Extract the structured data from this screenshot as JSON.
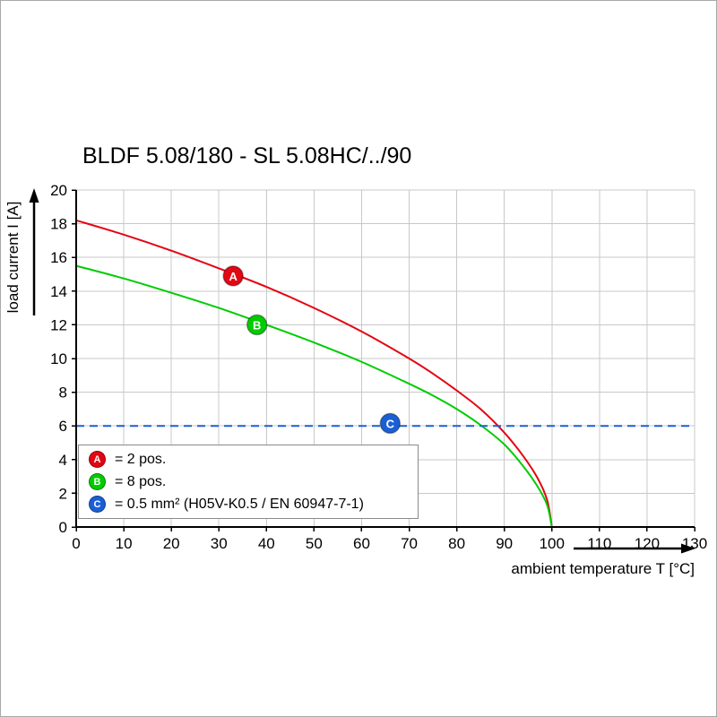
{
  "page": {
    "background": "#ffffff",
    "border_color": "#a8a8a8"
  },
  "chart_data": {
    "type": "line",
    "title": "BLDF 5.08/180 - SL 5.08HC/../90",
    "xlabel": "ambient temperature T [°C]",
    "ylabel": "load current I [A]",
    "xlim": [
      0,
      130
    ],
    "ylim": [
      0,
      20
    ],
    "x_ticks": [
      0,
      10,
      20,
      30,
      40,
      50,
      60,
      70,
      80,
      90,
      100,
      110,
      120,
      130
    ],
    "y_ticks": [
      0,
      2,
      4,
      6,
      8,
      10,
      12,
      14,
      16,
      18,
      20
    ],
    "grid": true,
    "grid_color": "#c8c8c8",
    "axis_color": "#000000",
    "legend_position": "lower-left",
    "series": [
      {
        "name": "A",
        "label": "2 pos.",
        "color": "#e30613",
        "style": "solid",
        "marker": {
          "x": 33,
          "y": 14.9
        },
        "points": [
          [
            0,
            18.2
          ],
          [
            10,
            17.35
          ],
          [
            20,
            16.4
          ],
          [
            30,
            15.35
          ],
          [
            40,
            14.25
          ],
          [
            50,
            13.0
          ],
          [
            60,
            11.6
          ],
          [
            70,
            10.0
          ],
          [
            75,
            9.1
          ],
          [
            80,
            8.1
          ],
          [
            85,
            7.0
          ],
          [
            90,
            5.6
          ],
          [
            94,
            4.2
          ],
          [
            97,
            2.9
          ],
          [
            99,
            1.6
          ],
          [
            100,
            0
          ]
        ]
      },
      {
        "name": "B",
        "label": "8 pos.",
        "color": "#00cc00",
        "style": "solid",
        "marker": {
          "x": 38,
          "y": 12.0
        },
        "points": [
          [
            0,
            15.5
          ],
          [
            10,
            14.75
          ],
          [
            20,
            13.9
          ],
          [
            30,
            13.0
          ],
          [
            40,
            12.0
          ],
          [
            50,
            10.95
          ],
          [
            60,
            9.8
          ],
          [
            70,
            8.5
          ],
          [
            75,
            7.8
          ],
          [
            80,
            7.0
          ],
          [
            85,
            6.05
          ],
          [
            90,
            4.9
          ],
          [
            94,
            3.6
          ],
          [
            97,
            2.4
          ],
          [
            99,
            1.3
          ],
          [
            100,
            0
          ]
        ]
      },
      {
        "name": "C",
        "label": "0.5 mm² (H05V-K0.5 / EN 60947-7-1)",
        "color": "#1a5fd6",
        "style": "dashed",
        "marker": {
          "x": 66,
          "y": 6.15
        },
        "points": [
          [
            0,
            6
          ],
          [
            130,
            6
          ]
        ]
      }
    ],
    "legend": [
      {
        "key": "A",
        "color": "#e30613",
        "text": "= 2 pos."
      },
      {
        "key": "B",
        "color": "#00cc00",
        "text": "= 8 pos."
      },
      {
        "key": "C",
        "color": "#1a5fd6",
        "text": "= 0.5 mm² (H05V-K0.5 / EN 60947-7-1)"
      }
    ]
  }
}
